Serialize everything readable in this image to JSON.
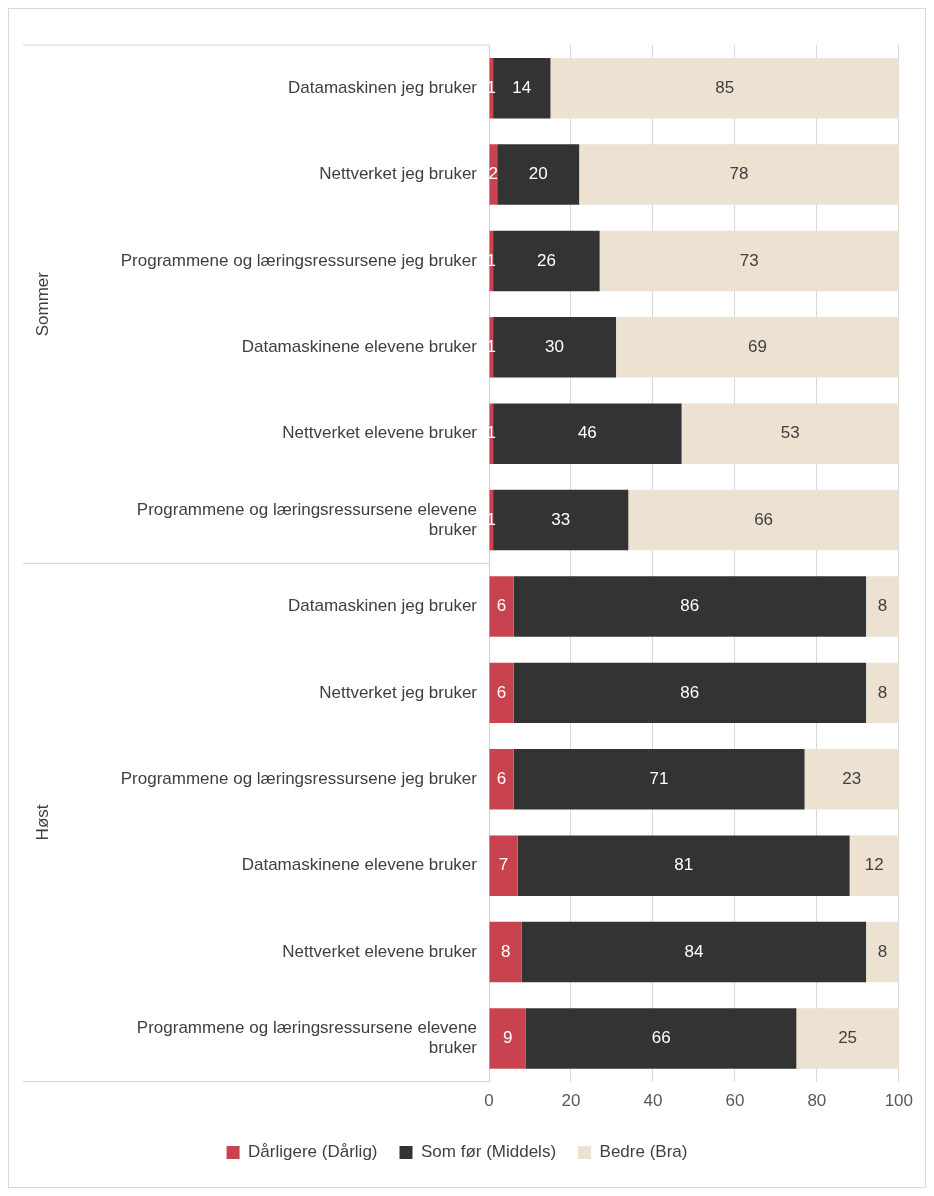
{
  "chart_data": {
    "type": "bar",
    "orientation": "horizontal",
    "stacked": true,
    "data_labels": true,
    "grid": "x",
    "legend": "bottom",
    "categories": [
      "Datamaskinen jeg bruker",
      "Nettverket jeg bruker",
      "Programmene og læringsressursene jeg bruker",
      "Datamaskinene elevene bruker",
      "Nettverket elevene bruker",
      "Programmene og læringsressursene elevene bruker",
      "Datamaskinen jeg bruker",
      "Nettverket jeg bruker",
      "Programmene og læringsressursene jeg bruker",
      "Datamaskinene elevene bruker",
      "Nettverket elevene bruker",
      "Programmene og læringsressursene elevene bruker"
    ],
    "series": [
      {
        "name": "Dårligere (Dårlig)",
        "color": "#c8434f",
        "values": [
          1,
          2,
          1,
          1,
          1,
          1,
          6,
          6,
          6,
          7,
          8,
          9
        ]
      },
      {
        "name": "Som før (Middels)",
        "color": "#333333",
        "values": [
          14,
          20,
          26,
          30,
          46,
          33,
          86,
          86,
          71,
          81,
          84,
          66
        ]
      },
      {
        "name": "Bedre (Bra)",
        "color": "#ede1d1",
        "values": [
          85,
          78,
          73,
          69,
          53,
          66,
          8,
          8,
          23,
          12,
          8,
          25
        ]
      }
    ],
    "xlim": [
      0,
      100
    ],
    "xticks": [
      0,
      20,
      40,
      60,
      80,
      100
    ],
    "annotations": [
      "Sommer",
      "Høst"
    ]
  }
}
